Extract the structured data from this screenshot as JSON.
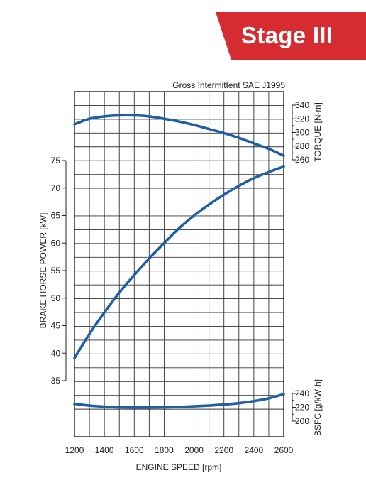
{
  "banner": {
    "label": "Stage III",
    "color": "#d52b31"
  },
  "chart_data": {
    "type": "line",
    "title": "Gross Intermittent SAE J1995",
    "xlabel": "ENGINE SPEED [rpm]",
    "xlim": [
      1200,
      2600
    ],
    "x_ticks": [
      "1200",
      "1400",
      "1600",
      "1800",
      "2000",
      "2200",
      "2400",
      "2600"
    ],
    "grid": true,
    "line_color": "#1f5fa6",
    "axes": {
      "power": {
        "label": "BRAKE HORSE POWER [kW]",
        "side": "left",
        "ticks": [
          "35",
          "40",
          "45",
          "50",
          "55",
          "60",
          "65",
          "70",
          "75"
        ]
      },
      "torque": {
        "label": "TORQUE [N·m]",
        "side": "right",
        "ticks": [
          "260",
          "280",
          "300",
          "320",
          "340"
        ]
      },
      "bsfc": {
        "label": "BSFC [g/kW·h]",
        "side": "right",
        "ticks": [
          "200",
          "220",
          "240"
        ]
      }
    },
    "series": [
      {
        "axis": "torque",
        "x": [
          1200,
          1300,
          1400,
          1500,
          1600,
          1700,
          1800,
          1900,
          2000,
          2100,
          2200,
          2300,
          2400,
          2500,
          2600
        ],
        "y": [
          312,
          320,
          323.5,
          325,
          325,
          323.5,
          320,
          316,
          311,
          305,
          299,
          292,
          284,
          276,
          266
        ]
      },
      {
        "axis": "power",
        "x": [
          1200,
          1300,
          1400,
          1500,
          1600,
          1700,
          1800,
          1900,
          2000,
          2100,
          2200,
          2300,
          2400,
          2500,
          2600
        ],
        "y": [
          39.1,
          43.5,
          47.4,
          51.0,
          54.2,
          57.2,
          60.0,
          62.7,
          65.0,
          67.0,
          68.8,
          70.4,
          71.8,
          72.9,
          73.9
        ]
      },
      {
        "axis": "bsfc",
        "x": [
          1200,
          1300,
          1400,
          1500,
          1600,
          1700,
          1800,
          1900,
          2000,
          2100,
          2200,
          2300,
          2400,
          2500,
          2600
        ],
        "y": [
          225,
          222.5,
          221,
          220,
          219.8,
          219.8,
          220,
          220.5,
          221.5,
          222.5,
          224,
          226,
          229,
          233,
          239
        ]
      }
    ]
  }
}
